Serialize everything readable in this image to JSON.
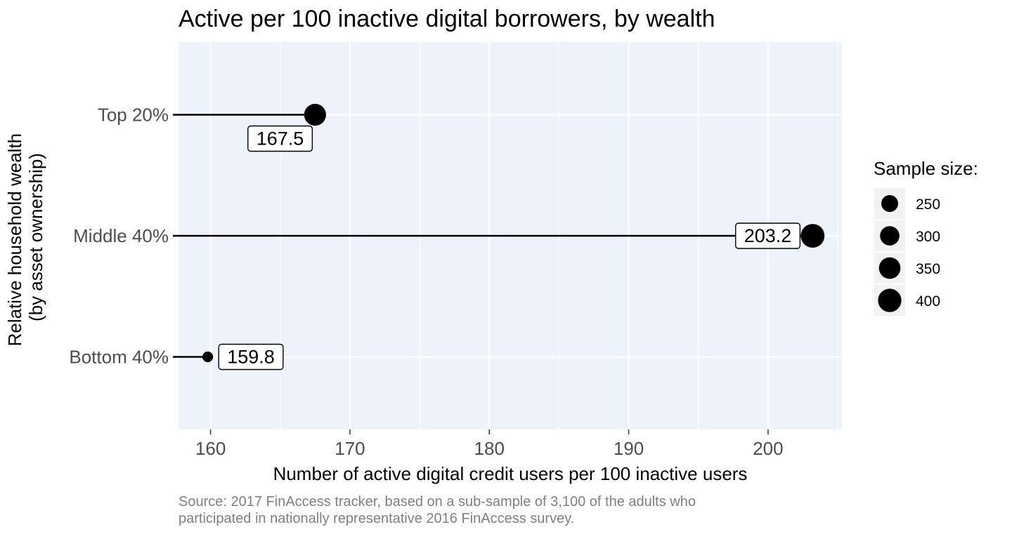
{
  "chart_data": {
    "type": "lollipop",
    "title": "Active per 100 inactive digital borrowers, by wealth",
    "xlabel": "Number of active digital credit users per 100 inactive users",
    "ylabel_lines": [
      "Relative household wealth",
      "(by asset ownership)"
    ],
    "xlim": [
      157.7,
      205.3
    ],
    "x_ticks": [
      160,
      170,
      180,
      190,
      200
    ],
    "categories": [
      "Top 20%",
      "Middle 40%",
      "Bottom 40%"
    ],
    "values": [
      167.5,
      203.2,
      159.8
    ],
    "value_labels": [
      "167.5",
      "203.2",
      "159.8"
    ],
    "sample_sizes": [
      360,
      410,
      170
    ],
    "legend": {
      "title": "Sample size:",
      "placement": "right",
      "entries": [
        {
          "label": "250",
          "size": 250
        },
        {
          "label": "300",
          "size": 300
        },
        {
          "label": "350",
          "size": 350
        },
        {
          "label": "400",
          "size": 400
        }
      ]
    },
    "grid": true,
    "panel_color": "#EEF3FB",
    "grid_color": "#FFFFFF",
    "point_color": "#000000"
  },
  "source_lines": [
    "Source: 2017 FinAccess tracker, based on a sub-sample of 3,100 of the adults who",
    "participated in nationally representative 2016 FinAccess survey."
  ]
}
